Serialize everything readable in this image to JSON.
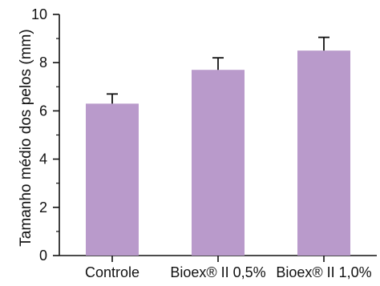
{
  "chart_data": {
    "type": "bar",
    "title": "",
    "xlabel": "",
    "ylabel": "Tamanho médio dos pelos (mm)",
    "ylim": [
      0,
      10
    ],
    "yticks": [
      0,
      2,
      4,
      6,
      8,
      10
    ],
    "grid": false,
    "categories": [
      "Controle",
      "Bioex® II 0,5%",
      "Bioex® II 1,0%"
    ],
    "values": [
      6.3,
      7.7,
      8.5
    ],
    "error_bars": [
      0.4,
      0.5,
      0.55
    ],
    "colors": {
      "bar": "#b99acb",
      "axis": "#111111"
    }
  }
}
